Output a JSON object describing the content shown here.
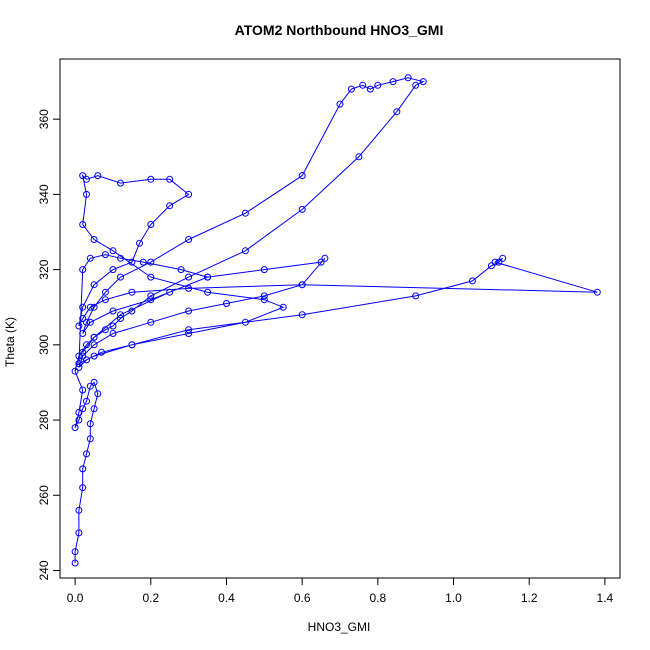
{
  "chart_data": {
    "type": "scatter",
    "title": "ATOM2 Northbound HNO3_GMI",
    "xlabel": "HNO3_GMI",
    "ylabel": "Theta (K)",
    "xlim": [
      -0.04,
      1.44
    ],
    "ylim": [
      238,
      376
    ],
    "x_ticks": [
      0.0,
      0.2,
      0.4,
      0.6,
      0.8,
      1.0,
      1.2,
      1.4
    ],
    "x_tick_labels": [
      "0.0",
      "0.2",
      "0.4",
      "0.6",
      "0.8",
      "1.0",
      "1.2",
      "1.4"
    ],
    "y_ticks": [
      240,
      260,
      280,
      300,
      320,
      340,
      360
    ],
    "y_tick_labels": [
      "240",
      "260",
      "280",
      "300",
      "320",
      "340",
      "360"
    ],
    "grid": false,
    "marker": "open-circle",
    "line": "connected",
    "series": [
      {
        "color": "#0000ff",
        "x": [
          0.0,
          0.0,
          0.01,
          0.01,
          0.02,
          0.02,
          0.03,
          0.04,
          0.04,
          0.05,
          0.06,
          0.05,
          0.04,
          0.03,
          0.02,
          0.01,
          0.0,
          0.01,
          0.02,
          0.0,
          0.01,
          0.03,
          0.05,
          0.08,
          0.1,
          0.12,
          0.15,
          0.2,
          0.3,
          0.45,
          0.6,
          0.75,
          0.85,
          0.9,
          0.92,
          0.88,
          0.84,
          0.8,
          0.78,
          0.76,
          0.73,
          0.7,
          0.6,
          0.45,
          0.3,
          0.2,
          0.12,
          0.08,
          0.05,
          0.03,
          0.02,
          0.04,
          0.1,
          0.2,
          0.35,
          0.5,
          0.65,
          0.66,
          0.6,
          0.5,
          0.4,
          0.3,
          0.2,
          0.1,
          0.05,
          0.02,
          0.01,
          0.03,
          0.07,
          0.15,
          0.3,
          0.6,
          0.9,
          1.05,
          1.1,
          1.12,
          1.13,
          1.11,
          1.38,
          0.6,
          0.3,
          0.15,
          0.08,
          0.04,
          0.02,
          0.01,
          0.02,
          0.05,
          0.1,
          0.15,
          0.17,
          0.2,
          0.25,
          0.3,
          0.25,
          0.2,
          0.12,
          0.06,
          0.03,
          0.02,
          0.03,
          0.02,
          0.05,
          0.1,
          0.2,
          0.35,
          0.5,
          0.55,
          0.45,
          0.3,
          0.15,
          0.05,
          0.01,
          0.02,
          0.04,
          0.08,
          0.12,
          0.18,
          0.28,
          0.35,
          0.25,
          0.12,
          0.05,
          0.02
        ],
        "y": [
          242,
          245,
          250,
          256,
          262,
          267,
          271,
          275,
          279,
          283,
          287,
          290,
          289,
          285,
          283,
          280,
          278,
          282,
          288,
          293,
          297,
          300,
          302,
          304,
          305,
          307,
          309,
          313,
          318,
          325,
          336,
          350,
          362,
          369,
          370,
          371,
          370,
          369,
          368,
          369,
          368,
          364,
          345,
          335,
          328,
          322,
          318,
          314,
          310,
          306,
          303,
          306,
          309,
          312,
          318,
          320,
          322,
          323,
          316,
          313,
          311,
          309,
          306,
          303,
          300,
          297,
          294,
          296,
          298,
          300,
          304,
          308,
          313,
          317,
          321,
          322,
          323,
          322,
          314,
          316,
          315,
          314,
          312,
          310,
          307,
          305,
          310,
          316,
          320,
          322,
          327,
          332,
          337,
          340,
          344,
          344,
          343,
          345,
          344,
          345,
          340,
          332,
          328,
          325,
          318,
          314,
          312,
          310,
          306,
          303,
          300,
          297,
          295,
          320,
          323,
          324,
          323,
          322,
          320,
          318,
          314,
          308,
          302,
          298
        ]
      }
    ]
  }
}
